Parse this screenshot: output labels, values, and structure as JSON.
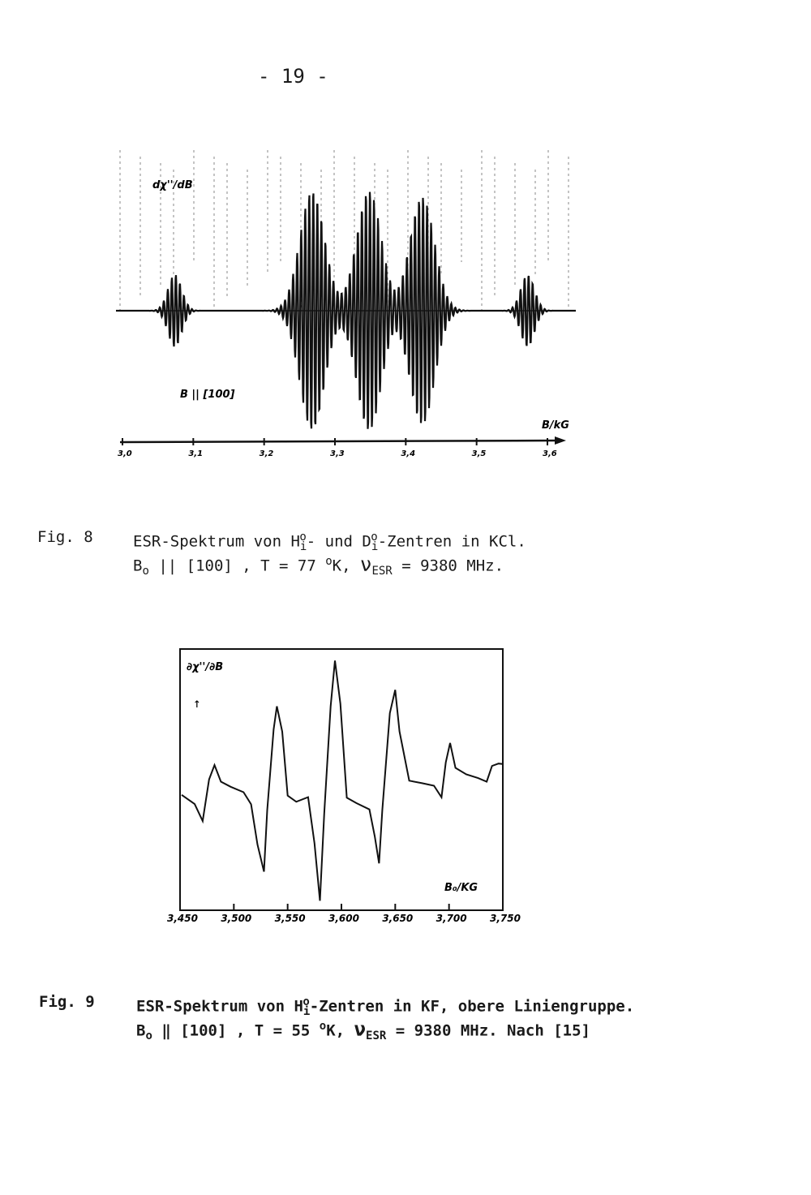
{
  "page_number": "- 19 -",
  "figures": [
    {
      "label": "Fig. 8",
      "caption_line1": [
        "ESR-Spektrum von H",
        "i",
        "o",
        "- und D",
        "i",
        "o",
        "-Zentren in KCl."
      ],
      "caption_line2": [
        "B",
        "o",
        " || [100] ,  T = 77 ",
        "o",
        "K,  ",
        "ν",
        "ESR",
        " = 9380 MHz."
      ]
    },
    {
      "label": "Fig. 9",
      "caption_line1": [
        "ESR-Spektrum von H",
        "i",
        "o",
        "-Zentren in KF, obere Liniengruppe."
      ],
      "caption_line2": [
        "B",
        "o",
        " ‖ [100] ,  T = 55 ",
        "o",
        "K,  ",
        "ν",
        "ESR",
        " = 9380 MHz. Nach [15]"
      ]
    }
  ],
  "chart_data": [
    {
      "type": "line",
      "ylabel": "dχ''/dB",
      "xlabel": "B/kG",
      "annotation": "B || [100]",
      "xlim": [
        3.0,
        3.6
      ],
      "x_ticks": [
        "3,0",
        "3,1",
        "3,2",
        "3,3",
        "3,4",
        "3,5",
        "3,6"
      ],
      "grid": "dashed vertical lines",
      "line_groups": [
        {
          "center": 3.074,
          "relative_amplitude": 0.3
        },
        {
          "center": 3.268,
          "relative_amplitude": 1.0
        },
        {
          "center": 3.348,
          "relative_amplitude": 1.0
        },
        {
          "center": 3.423,
          "relative_amplitude": 0.95
        },
        {
          "center": 3.572,
          "relative_amplitude": 0.3
        }
      ],
      "line_spacing_kG": 0.0057
    },
    {
      "type": "line",
      "ylabel": "∂χ''/∂B",
      "xlabel": "B₀/KG",
      "xlim": [
        3.45,
        3.75
      ],
      "x_ticks": [
        "3,450",
        "3,500",
        "3,550",
        "3,600",
        "3,650",
        "3,700",
        "3,750"
      ],
      "points": [
        [
          3.4515,
          -0.03
        ],
        [
          3.4636,
          -0.09
        ],
        [
          3.471,
          -0.22
        ],
        [
          3.477,
          0.09
        ],
        [
          3.482,
          0.19
        ],
        [
          3.488,
          0.06
        ],
        [
          3.497,
          0.03
        ],
        [
          3.509,
          0
        ],
        [
          3.516,
          -0.09
        ],
        [
          3.522,
          -0.41
        ],
        [
          3.528,
          -0.63
        ],
        [
          3.531,
          -0.16
        ],
        [
          3.537,
          0.47
        ],
        [
          3.54,
          0.66
        ],
        [
          3.545,
          0.47
        ],
        [
          3.55,
          -0.03
        ],
        [
          3.558,
          -0.09
        ],
        [
          3.569,
          -0.06
        ],
        [
          3.575,
          -0.41
        ],
        [
          3.58,
          -0.84
        ],
        [
          3.584,
          -0.16
        ],
        [
          3.59,
          0.66
        ],
        [
          3.594,
          1.0
        ],
        [
          3.599,
          0.66
        ],
        [
          3.605,
          -0.06
        ],
        [
          3.614,
          -0.09
        ],
        [
          3.626,
          -0.13
        ],
        [
          3.631,
          -0.34
        ],
        [
          3.635,
          -0.56
        ],
        [
          3.638,
          -0.16
        ],
        [
          3.645,
          0.59
        ],
        [
          3.65,
          0.78
        ],
        [
          3.654,
          0.47
        ],
        [
          3.663,
          0.09
        ],
        [
          3.675,
          0.06
        ],
        [
          3.686,
          0.03
        ],
        [
          3.693,
          -0.06
        ],
        [
          3.697,
          0.22
        ],
        [
          3.701,
          0.38
        ],
        [
          3.706,
          0.19
        ],
        [
          3.716,
          0.13
        ],
        [
          3.727,
          0.09
        ],
        [
          3.735,
          0.06
        ],
        [
          3.74,
          0.19
        ],
        [
          3.746,
          0.22
        ],
        [
          3.75,
          0.22
        ]
      ]
    }
  ]
}
